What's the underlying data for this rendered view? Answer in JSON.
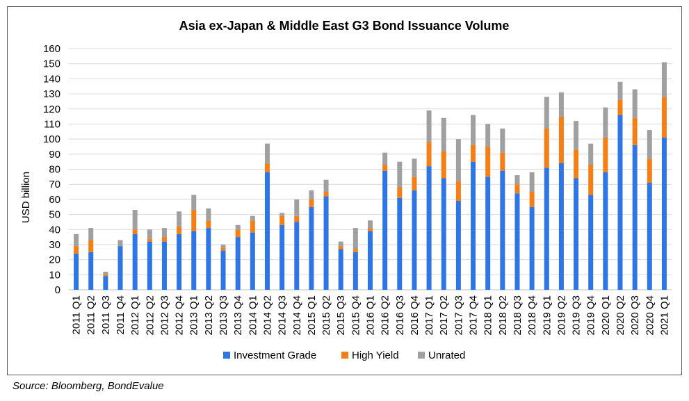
{
  "source_note": "Source: Bloomberg, BondEvalue",
  "chart_data": {
    "type": "bar",
    "stacked": true,
    "title": "Asia ex-Japan & Middle East G3 Bond Issuance Volume",
    "xlabel": "",
    "ylabel": "USD billion",
    "ylim": [
      0,
      160
    ],
    "yticks": [
      0,
      10,
      20,
      30,
      40,
      50,
      60,
      70,
      80,
      90,
      100,
      110,
      120,
      130,
      140,
      150,
      160
    ],
    "grid": true,
    "legend_position": "bottom",
    "categories": [
      "2011 Q1",
      "2011 Q2",
      "2011 Q3",
      "2011 Q4",
      "2012 Q1",
      "2012 Q2",
      "2012 Q3",
      "2012 Q4",
      "2013 Q1",
      "2013 Q2",
      "2013 Q3",
      "2013 Q4",
      "2014 Q1",
      "2014 Q2",
      "2014 Q3",
      "2014 Q4",
      "2015 Q1",
      "2015 Q2",
      "2015 Q3",
      "2015 Q4",
      "2016 Q1",
      "2016 Q2",
      "2016 Q3",
      "2016 Q4",
      "2017 Q1",
      "2017 Q2",
      "2017 Q3",
      "2017 Q4",
      "2018 Q1",
      "2018 Q2",
      "2018 Q3",
      "2018 Q4",
      "2019 Q1",
      "2019 Q2",
      "2019 Q3",
      "2019 Q4",
      "2020 Q1",
      "2020 Q2",
      "2020 Q3",
      "2020 Q4",
      "2021 Q1"
    ],
    "series": [
      {
        "name": "Investment Grade",
        "color": "#2e75e6",
        "values": [
          24,
          25,
          9,
          29,
          37,
          32,
          32,
          37,
          39,
          41,
          26,
          35,
          38,
          78,
          43,
          45,
          55,
          62,
          27,
          25,
          39,
          79,
          61,
          66,
          82,
          74,
          59,
          85,
          75,
          79,
          64,
          55,
          81,
          84,
          74,
          63,
          78,
          116,
          96,
          71,
          101
        ]
      },
      {
        "name": "High Yield",
        "color": "#f57f17",
        "values": [
          5,
          8,
          1,
          0,
          3,
          2,
          3,
          5,
          14,
          5,
          2,
          5,
          8,
          6,
          6,
          4,
          5,
          3,
          2,
          2,
          2,
          4,
          7,
          9,
          16,
          18,
          13,
          11,
          20,
          12,
          6,
          10,
          26,
          31,
          19,
          20,
          23,
          10,
          18,
          16,
          27
        ]
      },
      {
        "name": "Unrated",
        "color": "#a0a0a0",
        "values": [
          8,
          8,
          2,
          4,
          13,
          6,
          6,
          10,
          10,
          8,
          2,
          3,
          3,
          13,
          2,
          11,
          6,
          8,
          3,
          14,
          5,
          8,
          17,
          12,
          21,
          22,
          28,
          20,
          15,
          16,
          6,
          13,
          21,
          16,
          19,
          14,
          20,
          12,
          19,
          19,
          23
        ]
      }
    ]
  }
}
